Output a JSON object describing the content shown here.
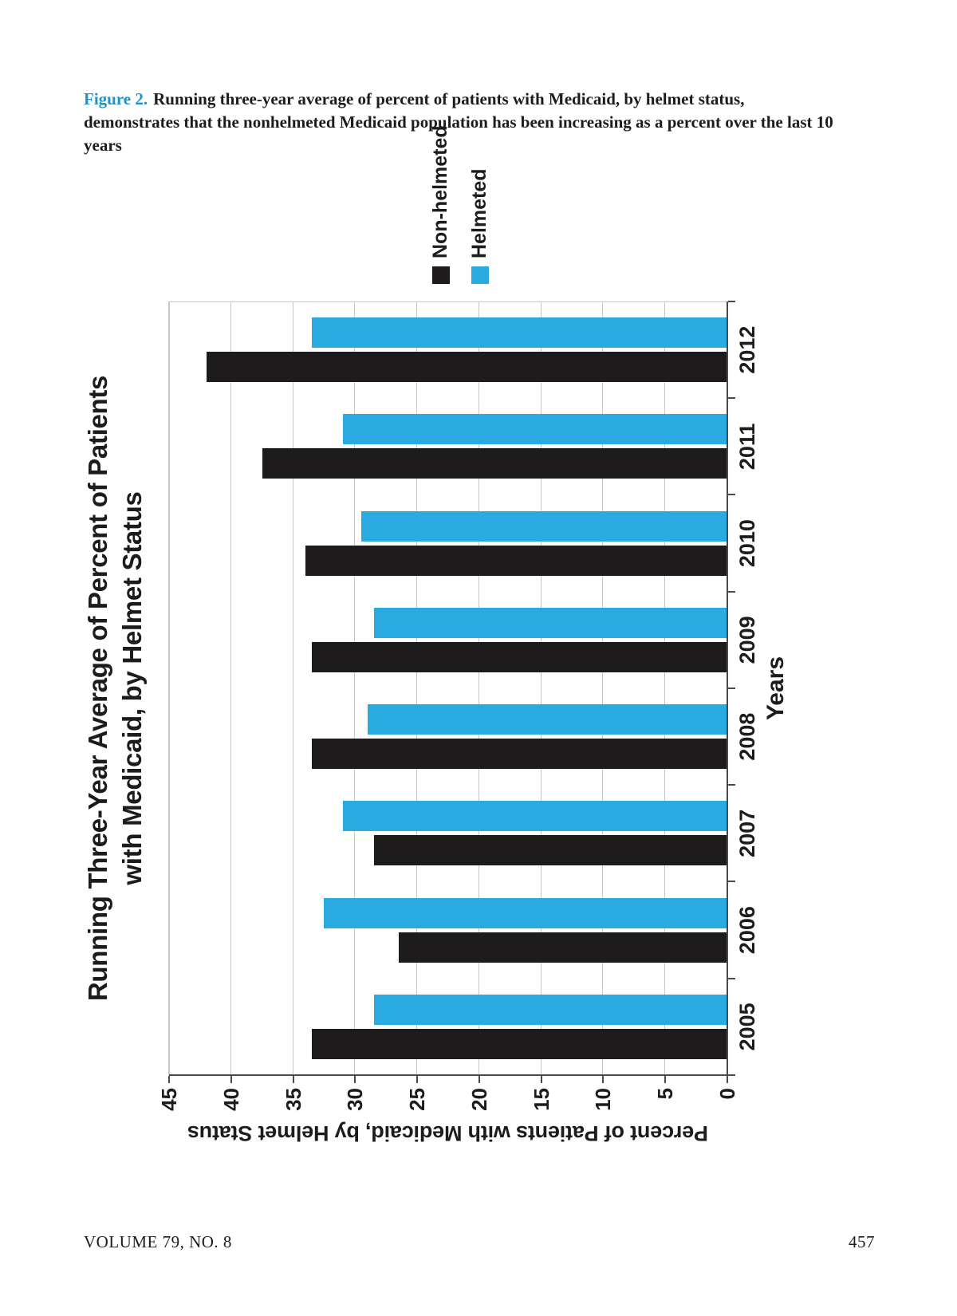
{
  "page": {
    "caption": {
      "label": "Figure 2.",
      "text": "Running three-year average of percent of patients with Medicaid, by helmet status, demonstrates that the nonhelmeted Medicaid population has been increasing as a percent over the last 10 years"
    },
    "footer": {
      "volume": "VOLUME 79, NO. 8",
      "page_number": "457"
    }
  },
  "chart_data": {
    "type": "bar",
    "orientation": "grouped vertical bars, entire chart rotated 90 degrees counterclockwise on the page",
    "title_line1": "Running Three-Year Average of Percent of Patients",
    "title_line2": "with Medicaid, by Helmet Status",
    "xlabel": "Years",
    "ylabel": "Percent of Patients with Medicaid, by Helmet Status",
    "categories": [
      "2005",
      "2006",
      "2007",
      "2008",
      "2009",
      "2010",
      "2011",
      "2012"
    ],
    "series": [
      {
        "name": "Non-helmeted",
        "color": "#1e1b1c",
        "values": [
          33.5,
          26.5,
          28.5,
          33.5,
          33.5,
          34,
          37.5,
          42
        ]
      },
      {
        "name": "Helmeted",
        "color": "#29abe2",
        "values": [
          28.5,
          32.5,
          31,
          29,
          28.5,
          29.5,
          31,
          33.5
        ]
      }
    ],
    "ylim": [
      0,
      45
    ],
    "yticks": [
      0,
      5,
      10,
      15,
      20,
      25,
      30,
      35,
      40,
      45
    ],
    "grid": true,
    "legend_position": "right-of-plot"
  },
  "colors": {
    "accent_blue": "#29abe2",
    "caption_label_blue": "#1e93c6",
    "text": "#1e1b1c",
    "gridline": "#c6c6c6"
  }
}
